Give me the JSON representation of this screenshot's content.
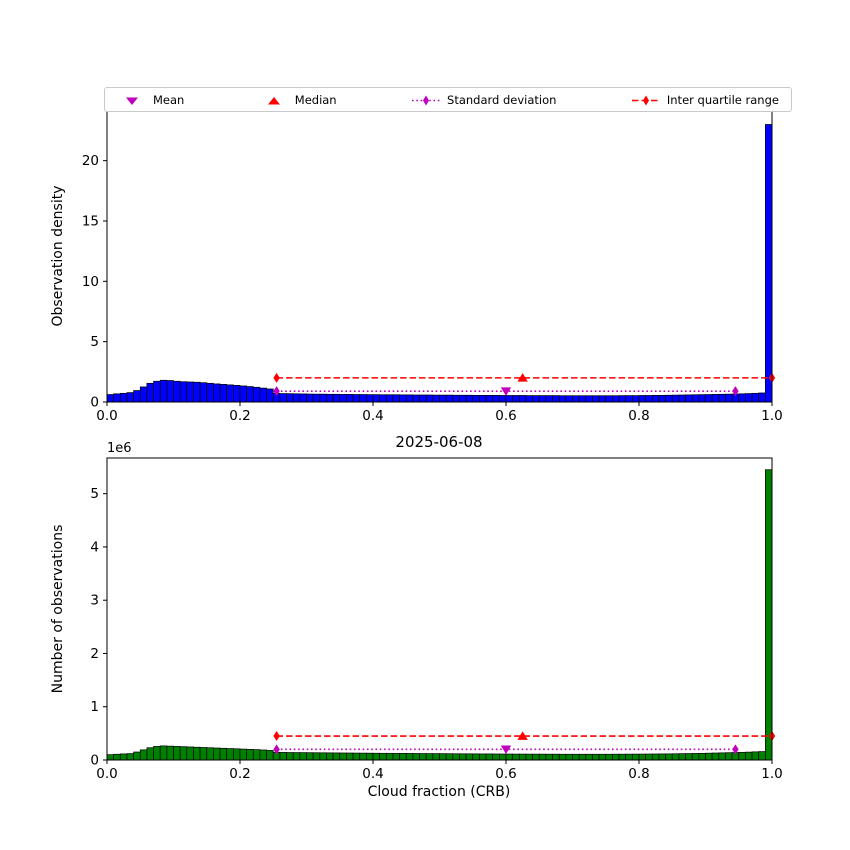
{
  "figure": {
    "title": "2025-06-08",
    "background": "#ffffff"
  },
  "legend": {
    "items": [
      {
        "label": "Mean",
        "marker": "triangle-down",
        "color": "#bf00bf",
        "linestyle": "none"
      },
      {
        "label": "Median",
        "marker": "triangle-up",
        "color": "#ff0000",
        "linestyle": "none"
      },
      {
        "label": "Standard deviation",
        "marker": "thin-diamond",
        "color": "#bf00bf",
        "linestyle": "dotted"
      },
      {
        "label": "Inter quartile range",
        "marker": "thin-diamond",
        "color": "#ff0000",
        "linestyle": "dashed"
      }
    ]
  },
  "chart_data": [
    {
      "type": "bar",
      "name": "observation-density-histogram",
      "ylabel": "Observation density",
      "xlabel": "",
      "bar_color": "#0000ff",
      "edge_color": "#000000",
      "xlim": [
        0.0,
        1.0
      ],
      "ylim": [
        0,
        24.2
      ],
      "xticks": [
        0.0,
        0.2,
        0.4,
        0.6,
        0.8,
        1.0
      ],
      "xtick_labels": [
        "0.0",
        "0.2",
        "0.4",
        "0.6",
        "0.8",
        "1.0"
      ],
      "yticks": [
        0,
        5,
        10,
        15,
        20
      ],
      "ytick_labels": [
        "0",
        "5",
        "10",
        "15",
        "20"
      ],
      "bin_start": 0.0,
      "bin_width": 0.01,
      "values": [
        0.62,
        0.68,
        0.72,
        0.78,
        0.95,
        1.25,
        1.55,
        1.72,
        1.8,
        1.78,
        1.72,
        1.68,
        1.66,
        1.64,
        1.6,
        1.55,
        1.5,
        1.46,
        1.42,
        1.38,
        1.33,
        1.28,
        1.22,
        1.15,
        1.08,
        0.72,
        0.7,
        0.69,
        0.68,
        0.67,
        0.66,
        0.65,
        0.65,
        0.64,
        0.64,
        0.63,
        0.63,
        0.62,
        0.62,
        0.61,
        0.61,
        0.6,
        0.6,
        0.6,
        0.59,
        0.59,
        0.58,
        0.58,
        0.58,
        0.57,
        0.57,
        0.57,
        0.56,
        0.56,
        0.56,
        0.55,
        0.55,
        0.55,
        0.55,
        0.54,
        0.54,
        0.54,
        0.54,
        0.53,
        0.53,
        0.53,
        0.53,
        0.53,
        0.52,
        0.52,
        0.52,
        0.52,
        0.52,
        0.52,
        0.52,
        0.52,
        0.52,
        0.53,
        0.53,
        0.53,
        0.54,
        0.54,
        0.55,
        0.55,
        0.56,
        0.57,
        0.58,
        0.59,
        0.6,
        0.61,
        0.62,
        0.63,
        0.64,
        0.65,
        0.66,
        0.68,
        0.7,
        0.72,
        0.75,
        23.0
      ],
      "stats": {
        "mean": {
          "x": 0.6,
          "y": 0.9,
          "color": "#bf00bf"
        },
        "median": {
          "x": 0.625,
          "y": 2.0,
          "color": "#ff0000"
        },
        "std_line": {
          "name": "std-line",
          "x1": 0.255,
          "x2": 0.945,
          "y": 0.9,
          "color": "#bf00bf",
          "style": "dotted"
        },
        "iqr_line": {
          "name": "iqr-line",
          "x1": 0.255,
          "x2": 1.0,
          "y": 2.0,
          "color": "#ff0000",
          "style": "dashed"
        }
      }
    },
    {
      "type": "bar",
      "name": "observation-count-histogram",
      "ylabel": "Number of observations",
      "xlabel": "Cloud fraction (CRB)",
      "offset_text": "1e6",
      "y_unit": 1000000,
      "bar_color": "#008000",
      "edge_color": "#000000",
      "xlim": [
        0.0,
        1.0
      ],
      "ylim": [
        0,
        5.67
      ],
      "xticks": [
        0.0,
        0.2,
        0.4,
        0.6,
        0.8,
        1.0
      ],
      "xtick_labels": [
        "0.0",
        "0.2",
        "0.4",
        "0.6",
        "0.8",
        "1.0"
      ],
      "yticks": [
        0,
        1,
        2,
        3,
        4,
        5
      ],
      "ytick_labels": [
        "0",
        "1",
        "2",
        "3",
        "4",
        "5"
      ],
      "bin_start": 0.0,
      "bin_width": 0.01,
      "values": [
        0.1,
        0.108,
        0.114,
        0.12,
        0.15,
        0.19,
        0.23,
        0.255,
        0.265,
        0.26,
        0.255,
        0.25,
        0.245,
        0.24,
        0.235,
        0.23,
        0.225,
        0.22,
        0.215,
        0.21,
        0.205,
        0.2,
        0.195,
        0.188,
        0.18,
        0.145,
        0.142,
        0.14,
        0.139,
        0.138,
        0.137,
        0.136,
        0.135,
        0.134,
        0.133,
        0.132,
        0.131,
        0.13,
        0.129,
        0.128,
        0.127,
        0.126,
        0.126,
        0.125,
        0.124,
        0.123,
        0.122,
        0.121,
        0.12,
        0.12,
        0.119,
        0.118,
        0.117,
        0.116,
        0.116,
        0.115,
        0.114,
        0.114,
        0.113,
        0.112,
        0.112,
        0.111,
        0.111,
        0.11,
        0.11,
        0.11,
        0.109,
        0.109,
        0.108,
        0.108,
        0.108,
        0.108,
        0.108,
        0.108,
        0.108,
        0.108,
        0.109,
        0.109,
        0.11,
        0.11,
        0.111,
        0.112,
        0.113,
        0.114,
        0.115,
        0.117,
        0.119,
        0.121,
        0.123,
        0.125,
        0.128,
        0.131,
        0.134,
        0.137,
        0.14,
        0.144,
        0.148,
        0.153,
        0.158,
        5.45
      ],
      "stats": {
        "mean": {
          "x": 0.6,
          "y": 0.2,
          "color": "#bf00bf"
        },
        "median": {
          "x": 0.625,
          "y": 0.45,
          "color": "#ff0000"
        },
        "std_line": {
          "name": "std-line",
          "x1": 0.255,
          "x2": 0.945,
          "y": 0.2,
          "color": "#bf00bf",
          "style": "dotted"
        },
        "iqr_line": {
          "name": "iqr-line",
          "x1": 0.255,
          "x2": 1.0,
          "y": 0.45,
          "color": "#ff0000",
          "style": "dashed"
        }
      }
    }
  ]
}
